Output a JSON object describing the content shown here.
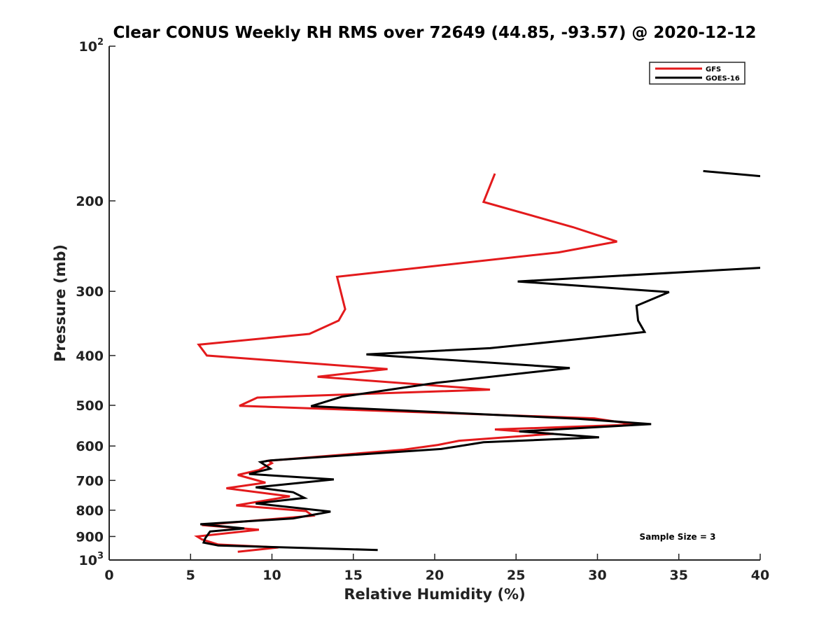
{
  "chart_data": {
    "type": "line",
    "title": "Clear CONUS Weekly RH RMS over 72649 (44.85, -93.57) @ 2020-12-12",
    "xlabel": "Relative Humidity (%)",
    "ylabel": "Pressure (mb)",
    "xlim": [
      0,
      40
    ],
    "ylim": [
      100,
      1000
    ],
    "y_scale": "log",
    "y_reversed": true,
    "grid": false,
    "legend_position": "top-right",
    "x_ticks": [
      "0",
      "5",
      "10",
      "15",
      "20",
      "25",
      "30",
      "35",
      "40"
    ],
    "y_ticks": [
      {
        "value": 100,
        "label": "10",
        "sup": "2"
      },
      {
        "value": 200,
        "label": "200"
      },
      {
        "value": 300,
        "label": "300"
      },
      {
        "value": 400,
        "label": "400"
      },
      {
        "value": 500,
        "label": "500"
      },
      {
        "value": 600,
        "label": "600"
      },
      {
        "value": 700,
        "label": "700"
      },
      {
        "value": 800,
        "label": "800"
      },
      {
        "value": 900,
        "label": "900"
      },
      {
        "value": 1000,
        "label": "10",
        "sup": "3"
      }
    ],
    "annotation": "Sample Size = 3",
    "series": [
      {
        "name": "GFS",
        "color": "#e31a1c",
        "points": [
          [
            23.7,
            177
          ],
          [
            23.0,
            201
          ],
          [
            28.5,
            225
          ],
          [
            31.2,
            240
          ],
          [
            27.6,
            252
          ],
          [
            14.0,
            281
          ],
          [
            14.5,
            325
          ],
          [
            14.1,
            342
          ],
          [
            12.3,
            363
          ],
          [
            5.5,
            381
          ],
          [
            6.0,
            400
          ],
          [
            17.1,
            425
          ],
          [
            12.8,
            440
          ],
          [
            23.4,
            466
          ],
          [
            9.1,
            483
          ],
          [
            8.0,
            501
          ],
          [
            29.8,
            530
          ],
          [
            32.3,
            545
          ],
          [
            23.7,
            557
          ],
          [
            27.3,
            568
          ],
          [
            21.5,
            586
          ],
          [
            20.2,
            597
          ],
          [
            18.1,
            610
          ],
          [
            9.8,
            641
          ],
          [
            10.0,
            648
          ],
          [
            9.2,
            668
          ],
          [
            7.9,
            683
          ],
          [
            9.6,
            707
          ],
          [
            7.2,
            725
          ],
          [
            11.1,
            752
          ],
          [
            7.8,
            783
          ],
          [
            12.1,
            803
          ],
          [
            12.5,
            820
          ],
          [
            5.7,
            855
          ],
          [
            9.2,
            873
          ],
          [
            5.4,
            900
          ],
          [
            5.7,
            912
          ],
          [
            6.7,
            933
          ],
          [
            10.4,
            945
          ],
          [
            7.9,
            964
          ]
        ]
      },
      {
        "name": "GOES-16",
        "color": "#000000",
        "points": [
          [
            36.5,
            175
          ],
          [
            40.0,
            179
          ],
          [
            null,
            null
          ],
          [
            40.0,
            270
          ],
          [
            25.1,
            287
          ],
          [
            34.4,
            301
          ],
          [
            32.4,
            320
          ],
          [
            32.5,
            342
          ],
          [
            32.9,
            360
          ],
          [
            28.7,
            372
          ],
          [
            23.4,
            387
          ],
          [
            15.8,
            398
          ],
          [
            28.3,
            423
          ],
          [
            20.1,
            452
          ],
          [
            14.3,
            481
          ],
          [
            12.4,
            502
          ],
          [
            28.8,
            531
          ],
          [
            33.3,
            544
          ],
          [
            25.2,
            562
          ],
          [
            30.1,
            577
          ],
          [
            23.0,
            590
          ],
          [
            20.4,
            608
          ],
          [
            9.9,
            640
          ],
          [
            9.3,
            645
          ],
          [
            9.9,
            664
          ],
          [
            8.6,
            680
          ],
          [
            13.8,
            697
          ],
          [
            9.0,
            722
          ],
          [
            11.3,
            738
          ],
          [
            12.0,
            757
          ],
          [
            9.0,
            776
          ],
          [
            13.6,
            805
          ],
          [
            11.3,
            830
          ],
          [
            5.6,
            852
          ],
          [
            8.3,
            868
          ],
          [
            6.2,
            880
          ],
          [
            5.9,
            907
          ],
          [
            5.8,
            925
          ],
          [
            6.7,
            937
          ],
          [
            16.5,
            956
          ]
        ]
      }
    ]
  }
}
